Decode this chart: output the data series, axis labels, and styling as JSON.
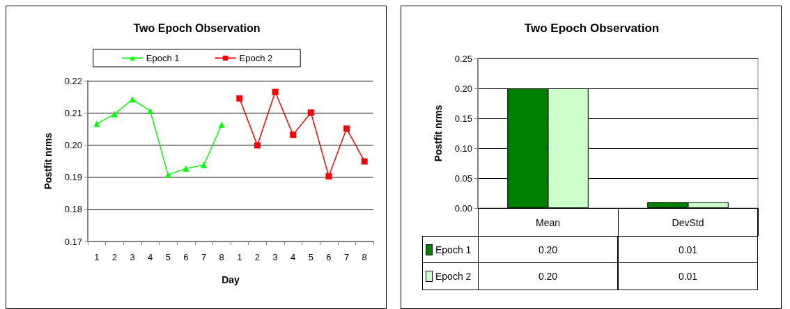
{
  "chart_data": [
    {
      "type": "line",
      "title": "Two Epoch Observation",
      "xlabel": "Day",
      "ylabel": "Postfit nrms",
      "categories": [
        "1",
        "2",
        "3",
        "4",
        "5",
        "6",
        "7",
        "8",
        "1",
        "2",
        "3",
        "4",
        "5",
        "6",
        "7",
        "8"
      ],
      "series": [
        {
          "name": "Epoch 1",
          "color": "#00ff00",
          "marker": "triangle",
          "values": [
            0.2066,
            0.2096,
            0.2142,
            0.2106,
            0.1907,
            0.1927,
            0.1938,
            0.2063,
            null,
            null,
            null,
            null,
            null,
            null,
            null,
            null
          ]
        },
        {
          "name": "Epoch 2",
          "color": "#ff0000",
          "marker": "square",
          "values": [
            null,
            null,
            null,
            null,
            null,
            null,
            null,
            null,
            0.2145,
            0.1999,
            0.2165,
            0.2032,
            0.2101,
            0.1903,
            0.2051,
            0.1949
          ]
        }
      ],
      "ylim": [
        0.17,
        0.22
      ],
      "yticks": [
        {
          "value": 0.17,
          "label": "0.17"
        },
        {
          "value": 0.18,
          "label": "0.18"
        },
        {
          "value": 0.19,
          "label": "0.19"
        },
        {
          "value": 0.2,
          "label": "0.20"
        },
        {
          "value": 0.21,
          "label": "0.21"
        },
        {
          "value": 0.22,
          "label": "0.22"
        }
      ],
      "grid": "y",
      "legend": "top"
    },
    {
      "type": "bar",
      "title": "Two Epoch Observation",
      "ylabel": "Postfit nrms",
      "categories": [
        "Mean",
        "DevStd"
      ],
      "series": [
        {
          "name": "Epoch 1",
          "color": "#008000",
          "values": [
            0.2,
            0.01
          ],
          "value_labels": [
            "0.20",
            "0.01"
          ]
        },
        {
          "name": "Epoch 2",
          "color": "#ccffcc",
          "values": [
            0.2,
            0.01
          ],
          "value_labels": [
            "0.20",
            "0.01"
          ]
        }
      ],
      "ylim": [
        0,
        0.25
      ],
      "yticks": [
        {
          "value": 0,
          "label": "0.00"
        },
        {
          "value": 0.05,
          "label": "0.05"
        },
        {
          "value": 0.1,
          "label": "0.10"
        },
        {
          "value": 0.15,
          "label": "0.15"
        },
        {
          "value": 0.2,
          "label": "0.20"
        },
        {
          "value": 0.25,
          "label": "0.25"
        }
      ],
      "grid": "y",
      "legend": "bottom left"
    }
  ]
}
